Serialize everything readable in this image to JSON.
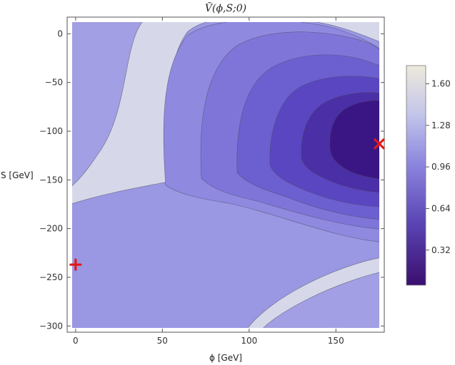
{
  "chart_data": {
    "type": "heatmap",
    "subtype": "contour",
    "title": "Ṽ(ϕ,S;0)",
    "xlabel": "ϕ [GeV]",
    "ylabel": "S [GeV]",
    "xlim": [
      -2,
      175
    ],
    "ylim": [
      -302,
      12
    ],
    "x_ticks": [
      "0",
      "50",
      "100",
      "150"
    ],
    "x_tick_values": [
      0,
      50,
      100,
      150
    ],
    "y_ticks": [
      "0",
      "−50",
      "−100",
      "−150",
      "−200",
      "−250",
      "−300"
    ],
    "y_tick_values": [
      0,
      -50,
      -100,
      -150,
      -200,
      -250,
      -300
    ],
    "colorbar": {
      "range": [
        0.05,
        1.74
      ],
      "tick_labels": [
        "1.60",
        "1.28",
        "0.96",
        "0.64",
        "0.32"
      ],
      "tick_values": [
        1.6,
        1.28,
        0.96,
        0.64,
        0.32
      ],
      "color_low": "#3a0f6e",
      "color_mid": "#8c85de",
      "color_high": "#eee9dc"
    },
    "contour_step": 0.16,
    "minimum_region": {
      "phi": 158,
      "S": -113
    },
    "markers": [
      {
        "name": "cross-marker",
        "symbol": "×",
        "phi": 175,
        "S": -113,
        "color": "#e01a1a"
      },
      {
        "name": "plus-marker",
        "symbol": "+",
        "phi": 0,
        "S": -237,
        "color": "#e01a1a"
      }
    ],
    "grid": false
  }
}
